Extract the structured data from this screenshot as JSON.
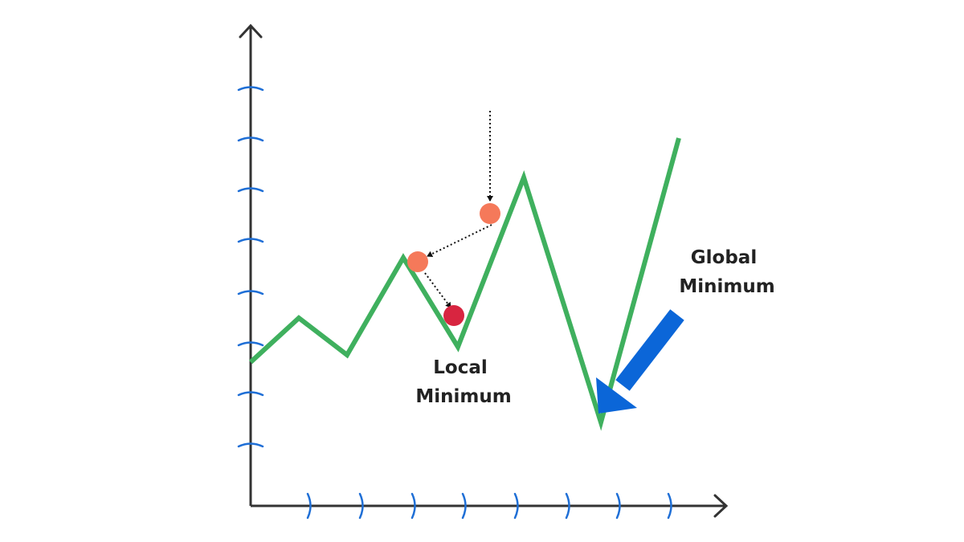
{
  "colors": {
    "axis": "#333333",
    "ticks": "#1f6fd6",
    "curve": "#3fb05e",
    "ball_start": "#f5795a",
    "ball_end": "#d82540",
    "arrow": "#0b66d8",
    "path": "#111111"
  },
  "labels": {
    "local_minimum": [
      "Local",
      "Minimum"
    ],
    "global_minimum": [
      "Global",
      "Minimum"
    ]
  },
  "curve": {
    "points": [
      [
        0,
        5.5
      ],
      [
        1,
        7.2
      ],
      [
        2,
        5.8
      ],
      [
        3,
        9.5
      ],
      [
        4,
        6.1
      ],
      [
        5,
        12.6
      ],
      [
        6,
        3.2
      ],
      [
        7,
        14.1
      ]
    ]
  },
  "descent_steps": [
    {
      "name": "start",
      "x": 4.6,
      "y": 10.3,
      "color_key": "ball_start"
    },
    {
      "name": "step-2",
      "x": 3.35,
      "y": 9.5,
      "color_key": "ball_start"
    },
    {
      "name": "end",
      "x": 3.9,
      "y": 7.1,
      "color_key": "ball_end"
    }
  ]
}
